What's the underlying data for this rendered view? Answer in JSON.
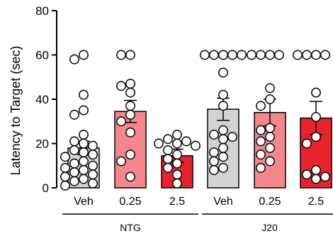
{
  "chart_data": {
    "type": "bar",
    "ylabel": "Latency to Target (sec)",
    "ylim": [
      0,
      80
    ],
    "yticks": [
      0,
      20,
      40,
      60,
      80
    ],
    "grid": false,
    "categories": [
      "Veh",
      "0.25",
      "2.5",
      "Veh",
      "0.25",
      "2.5"
    ],
    "groups": [
      {
        "label": "NTG",
        "categories": [
          0,
          1,
          2
        ]
      },
      {
        "label": "J20",
        "categories": [
          3,
          4,
          5
        ]
      }
    ],
    "colors": [
      "#d3d3d3",
      "#f4868c",
      "#e8232b",
      "#d3d3d3",
      "#f4868c",
      "#e8232b"
    ],
    "values": [
      18,
      34.5,
      14.5,
      35.5,
      34,
      31.5
    ],
    "errors": [
      3,
      5,
      3,
      5,
      6,
      7.5
    ],
    "points": [
      [
        60,
        58,
        42,
        35,
        33,
        24,
        21,
        20,
        19,
        17,
        16,
        15,
        14,
        12,
        11,
        10,
        9,
        8,
        7,
        6,
        5,
        4,
        3,
        2,
        1
      ],
      [
        60,
        60,
        47,
        46,
        43,
        37,
        33,
        30,
        25,
        15,
        12,
        5
      ],
      [
        24,
        22,
        21,
        20,
        20,
        19,
        17,
        15,
        13,
        11,
        9,
        6,
        2
      ],
      [
        60,
        60,
        60,
        60,
        60,
        52,
        42,
        37,
        26,
        24,
        23,
        22,
        18,
        16,
        14,
        12,
        9,
        8
      ],
      [
        60,
        60,
        60,
        60,
        45,
        40,
        37,
        27,
        26,
        23,
        21,
        18,
        15,
        12,
        9
      ],
      [
        60,
        60,
        60,
        60,
        43,
        32,
        23,
        20,
        8,
        6,
        5,
        4
      ]
    ]
  }
}
